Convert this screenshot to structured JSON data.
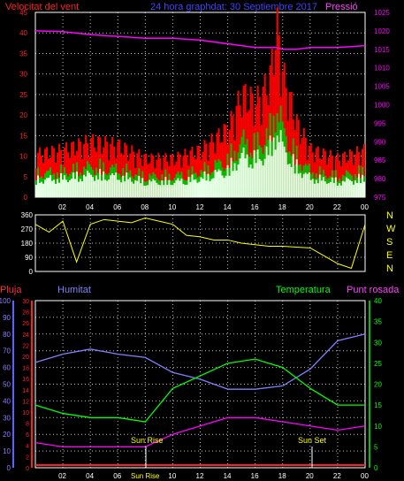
{
  "header": {
    "left_label": "Velocitat del vent",
    "center_label": "24 hora graphdat:  30 Septiembre 2017",
    "right_label": "Pressió"
  },
  "colors": {
    "background": "#000000",
    "grid": "#c0c0c0",
    "wind_speed": "#ff2020",
    "wind_gust": "#ff0000",
    "wind_avg": "#e8ffe8",
    "wind_mid": "#00c000",
    "pressure": "#ff00ff",
    "direction": "#ffff00",
    "rain": "#ff2020",
    "humidity": "#8080ff",
    "temperature": "#00ff00",
    "dewpoint": "#ff00ff",
    "label_white": "#ffffff"
  },
  "x_ticks": [
    "02",
    "04",
    "06",
    "08",
    "10",
    "12",
    "14",
    "16",
    "18",
    "20",
    "22",
    "00"
  ],
  "panel_wind": {
    "y_left_ticks": [
      "0",
      "5",
      "10",
      "15",
      "20",
      "25",
      "30",
      "35",
      "40",
      "45"
    ],
    "y_right_ticks": [
      "975",
      "980",
      "985",
      "990",
      "995",
      "1000",
      "1005",
      "1010",
      "1015",
      "1020",
      "1025"
    ]
  },
  "panel_direction": {
    "y_left_ticks": [
      "0",
      "90",
      "180",
      "270",
      "360"
    ],
    "compass": [
      "N",
      "W",
      "S",
      "E",
      "N"
    ]
  },
  "panel_weather": {
    "legend": {
      "rain": "Pluja",
      "humidity": "Humitat",
      "temperature": "Temperatura",
      "dewpoint": "Punt rosada"
    },
    "humidity_ticks": [
      "0",
      "10",
      "20",
      "30",
      "40",
      "50",
      "60",
      "70",
      "80",
      "90",
      "100"
    ],
    "rain_ticks": [
      "0",
      "2",
      "4",
      "6",
      "8",
      "10",
      "12",
      "14",
      "16",
      "18",
      "20",
      "22",
      "24",
      "26",
      "28",
      "30"
    ],
    "temp_ticks": [
      "0",
      "5",
      "10",
      "15",
      "20",
      "25",
      "30",
      "35",
      "40"
    ],
    "sunrise_label": "Sun Rise",
    "sunset_label": "Sun Set",
    "sunrise_tick": "Sun Rise"
  },
  "chart_data": [
    {
      "type": "line",
      "xlabel": "",
      "ylabel": "Velocitat del vent",
      "ylim": [
        0,
        45
      ],
      "y2label": "Pressió",
      "y2lim": [
        975,
        1025
      ],
      "x": [
        0,
        2,
        4,
        6,
        8,
        10,
        12,
        14,
        15,
        16,
        17,
        17.5,
        18,
        19,
        20,
        22,
        24
      ],
      "series": [
        {
          "name": "Velocitat del vent",
          "axis": "left",
          "values": [
            10,
            11,
            13,
            12,
            9,
            9,
            11,
            16,
            24,
            22,
            27,
            40,
            28,
            17,
            11,
            9,
            11
          ]
        },
        {
          "name": "Pressió",
          "axis": "right",
          "values": [
            1020,
            1019.8,
            1019,
            1018.5,
            1018,
            1018,
            1017.5,
            1016.5,
            1016,
            1015.5,
            1015.5,
            1015.5,
            1015,
            1015,
            1015.5,
            1015.5,
            1016
          ]
        }
      ],
      "grid": true
    },
    {
      "type": "scatter",
      "xlabel": "",
      "ylabel": "",
      "ylim": [
        0,
        360
      ],
      "x": [
        0,
        1,
        2,
        3,
        4,
        5,
        6,
        7,
        8,
        9,
        10,
        11,
        12,
        13,
        14,
        15,
        16,
        17,
        18,
        19,
        20,
        21,
        22,
        23,
        24
      ],
      "series": [
        {
          "name": "",
          "values": [
            300,
            250,
            320,
            60,
            300,
            330,
            320,
            310,
            340,
            320,
            300,
            230,
            220,
            200,
            200,
            180,
            170,
            160,
            160,
            155,
            150,
            100,
            50,
            20,
            300
          ]
        }
      ],
      "grid": true
    },
    {
      "type": "line",
      "xlabel": "",
      "ylabel": "Humitat",
      "ylim": [
        0,
        100
      ],
      "y2label": "Temperatura",
      "y2lim": [
        0,
        40
      ],
      "x": [
        0,
        2,
        4,
        6,
        8,
        10,
        12,
        14,
        16,
        18,
        20,
        22,
        24
      ],
      "series": [
        {
          "name": "Humitat",
          "axis": "left",
          "values": [
            63,
            68,
            71,
            68,
            66,
            57,
            53,
            47,
            47,
            49,
            59,
            76,
            80
          ]
        },
        {
          "name": "Temperatura",
          "axis": "right",
          "values": [
            15,
            13,
            12,
            12,
            11,
            19,
            22,
            25,
            26,
            24,
            19,
            15,
            15
          ]
        },
        {
          "name": "Punt rosada",
          "axis": "right",
          "values": [
            6,
            5,
            5,
            5,
            5,
            8,
            10,
            12,
            12,
            11,
            10,
            9,
            10
          ]
        },
        {
          "name": "Pluja",
          "axis": "rain",
          "values": [
            0,
            0,
            0,
            0,
            0,
            0,
            0,
            0,
            0,
            0,
            0,
            0,
            0
          ]
        }
      ],
      "annotations": [
        "Sun Rise",
        "Sun Set"
      ],
      "grid": true
    }
  ]
}
